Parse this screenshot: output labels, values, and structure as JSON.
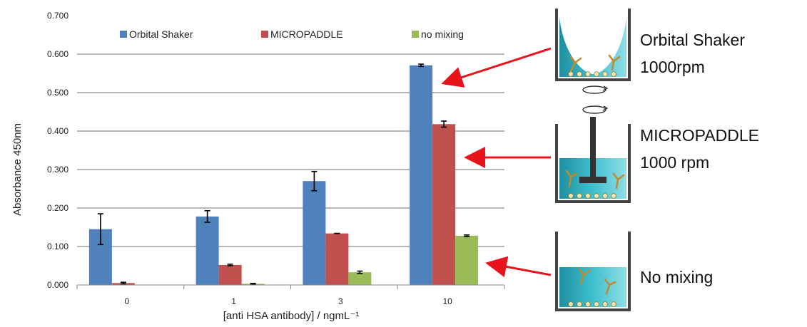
{
  "chart_data": {
    "type": "bar",
    "title": "",
    "xlabel": "[anti HSA antibody] / ngmL⁻¹",
    "ylabel": "Absorbance 450nm",
    "ylim": [
      0,
      0.7
    ],
    "yticks": [
      "0.000",
      "0.100",
      "0.200",
      "0.300",
      "0.400",
      "0.500",
      "0.600",
      "0.700"
    ],
    "categories": [
      "0",
      "1",
      "3",
      "10"
    ],
    "grid": true,
    "legend_position": "top",
    "series": [
      {
        "name": "Orbital Shaker",
        "color": "#4F81BD",
        "values": [
          0.145,
          0.178,
          0.27,
          0.571
        ],
        "errors": [
          0.04,
          0.015,
          0.025,
          0.003
        ]
      },
      {
        "name": "MICROPADDLE",
        "color": "#C0504D",
        "values": [
          0.005,
          0.052,
          0.134,
          0.418
        ],
        "errors": [
          0.002,
          0.002,
          0.0,
          0.008
        ]
      },
      {
        "name": "no mixing",
        "color": "#9BBB59",
        "values": [
          0.0,
          0.003,
          0.033,
          0.128
        ],
        "errors": [
          0.0,
          0.001,
          0.003,
          0.002
        ]
      }
    ]
  },
  "panel": {
    "items": [
      {
        "key": "orbital",
        "label_line1": "Orbital Shaker",
        "label_line2": "1000rpm"
      },
      {
        "key": "paddle",
        "label_line1": "MICROPADDLE",
        "label_line2": "1000 rpm"
      },
      {
        "key": "nomix",
        "label_line1": "No mixing",
        "label_line2": ""
      }
    ],
    "arrow_color": "#E8141B",
    "liquid_color": "#2BA9B8"
  }
}
